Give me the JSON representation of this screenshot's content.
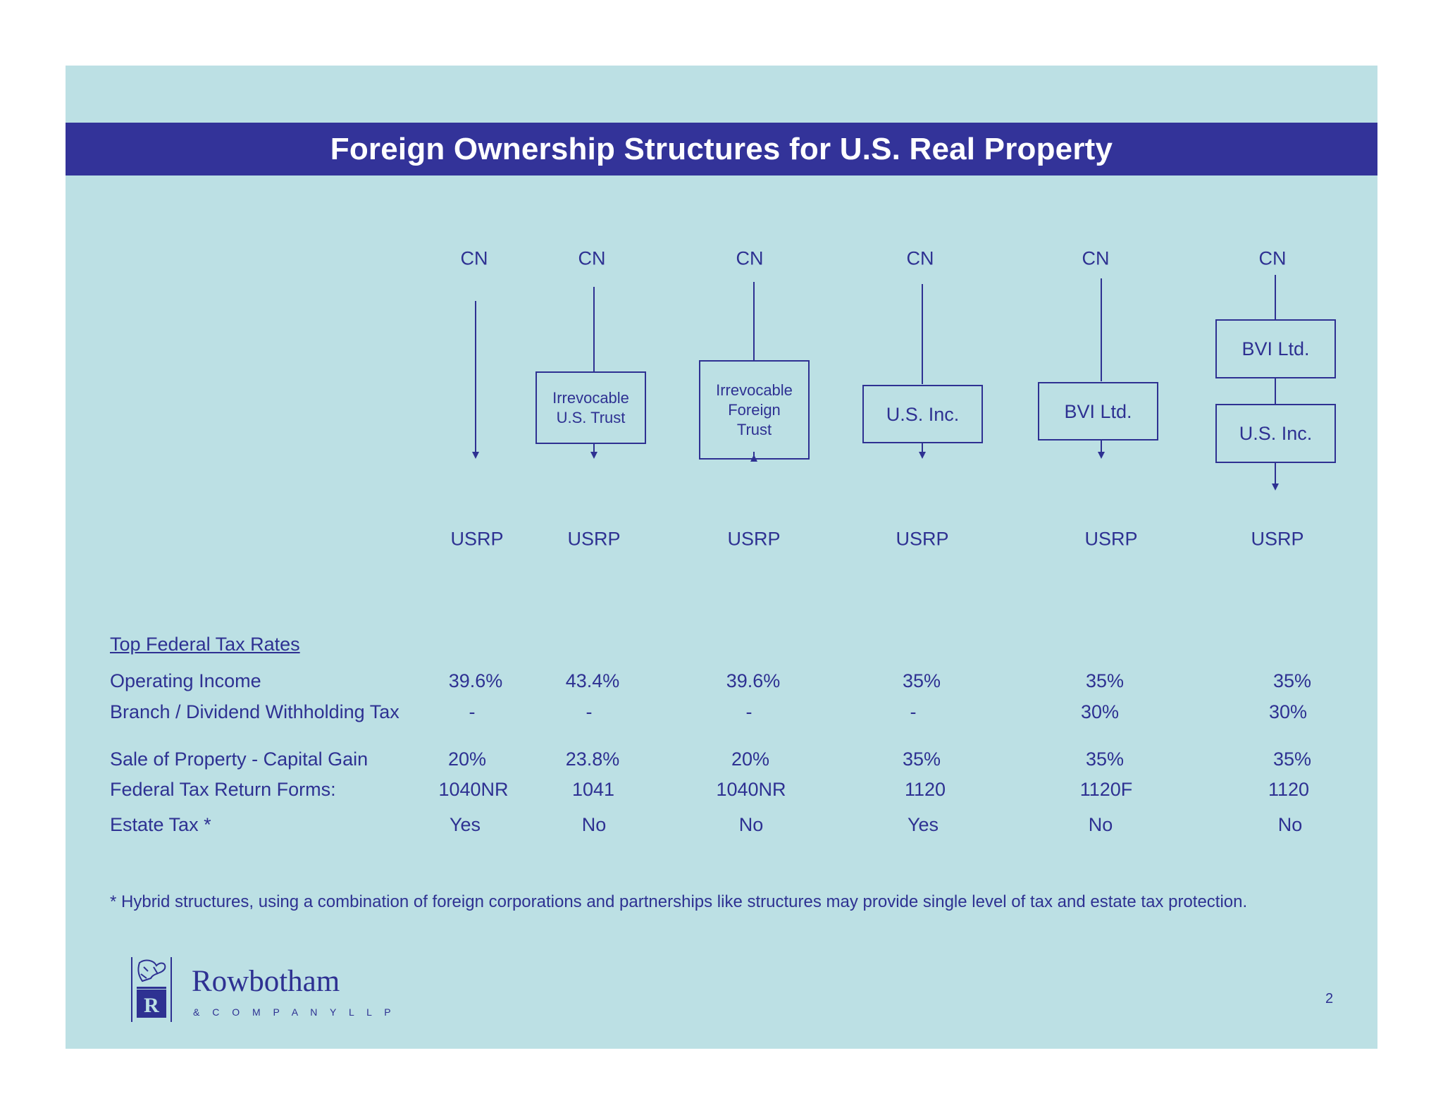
{
  "title": "Foreign Ownership Structures for U.S. Real Property",
  "colors": {
    "background": "#bce0e4",
    "title_bar": "#333399",
    "text": "#2e3192"
  },
  "structures": [
    {
      "owner": "CN",
      "entities": [],
      "property": "USRP"
    },
    {
      "owner": "CN",
      "entities": [
        "Irrevocable\nU.S. Trust"
      ],
      "property": "USRP"
    },
    {
      "owner": "CN",
      "entities": [
        "Irrevocable\nForeign\nTrust"
      ],
      "property": "USRP"
    },
    {
      "owner": "CN",
      "entities": [
        "U.S. Inc."
      ],
      "property": "USRP"
    },
    {
      "owner": "CN",
      "entities": [
        "BVI Ltd."
      ],
      "property": "USRP"
    },
    {
      "owner": "CN",
      "entities": [
        "BVI Ltd.",
        "U.S. Inc."
      ],
      "property": "USRP"
    }
  ],
  "tax_table": {
    "heading": "Top Federal Tax Rates",
    "rows": [
      {
        "label": "Operating Income",
        "values": [
          "39.6%",
          "43.4%",
          "39.6%",
          "35%",
          "35%",
          "35%"
        ]
      },
      {
        "label": "Branch / Dividend Withholding Tax",
        "values": [
          "-",
          "-",
          "-",
          "-",
          "30%",
          "30%"
        ]
      },
      {
        "label": "Sale of Property  - Capital Gain",
        "values": [
          "20%",
          "23.8%",
          "20%",
          "35%",
          "35%",
          "35%"
        ]
      },
      {
        "label": "Federal Tax Return Forms:",
        "values": [
          "1040NR",
          "1041",
          "1040NR",
          "1120",
          "1120F",
          "1120"
        ]
      },
      {
        "label": "Estate Tax *",
        "values": [
          "Yes",
          "No",
          "No",
          "Yes",
          "No",
          "No"
        ]
      }
    ]
  },
  "footnote": "* Hybrid structures, using a combination of foreign corporations and partnerships like structures may provide single level of tax and estate tax protection.",
  "logo": {
    "name": "Rowbotham",
    "subtitle": "& C O M P A N Y  L L P",
    "mark_letter": "R"
  },
  "page_number": "2"
}
